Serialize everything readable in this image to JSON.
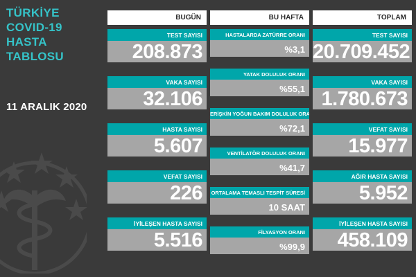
{
  "sidebar": {
    "title_lines": [
      "TÜRKİYE",
      "COVID-19",
      "HASTA",
      "TABLOSU"
    ],
    "date": "11 ARALIK 2020"
  },
  "today": {
    "header": "BUGÜN",
    "items": [
      {
        "label": "TEST SAYISI",
        "value": "208.873"
      },
      {
        "label": "VAKA SAYISI",
        "value": "32.106"
      },
      {
        "label": "HASTA SAYISI",
        "value": "5.607"
      },
      {
        "label": "VEFAT SAYISI",
        "value": "226"
      },
      {
        "label": "İYİLEŞEN HASTA SAYISI",
        "value": "5.516"
      }
    ]
  },
  "week": {
    "header": "BU HAFTA",
    "items": [
      {
        "label": "HASTALARDA ZATÜRRE ORANI",
        "value": "%3,1"
      },
      {
        "label": "YATAK DOLULUK ORANI",
        "value": "%55,1"
      },
      {
        "label": "ERİŞKİN YOĞUN BAKIM DOLULUK ORANI",
        "value": "%72,1"
      },
      {
        "label": "VENTİLATÖR DOLULUK ORANI",
        "value": "%41,7"
      },
      {
        "label": "ORTALAMA TEMASLI TESPİT SÜRESİ",
        "value": "10 SAAT"
      },
      {
        "label": "FİLYASYON ORANI",
        "value": "%99,9"
      }
    ]
  },
  "total": {
    "header": "TOPLAM",
    "items": [
      {
        "label": "TEST SAYISI",
        "value": "20.709.452"
      },
      {
        "label": "VAKA SAYISI",
        "value": "1.780.673"
      },
      {
        "label": "VEFAT SAYISI",
        "value": "15.977"
      },
      {
        "label": "AĞIR HASTA SAYISI",
        "value": "5.952"
      },
      {
        "label": "İYİLEŞEN HASTA SAYISI",
        "value": "458.109"
      }
    ]
  },
  "colors": {
    "background": "#3a3a3a",
    "accent": "#00a6aa",
    "title": "#35c3c8",
    "value_box": "#a6a6a6"
  },
  "icons": {
    "emblem": "ministry-emblem-icon"
  }
}
